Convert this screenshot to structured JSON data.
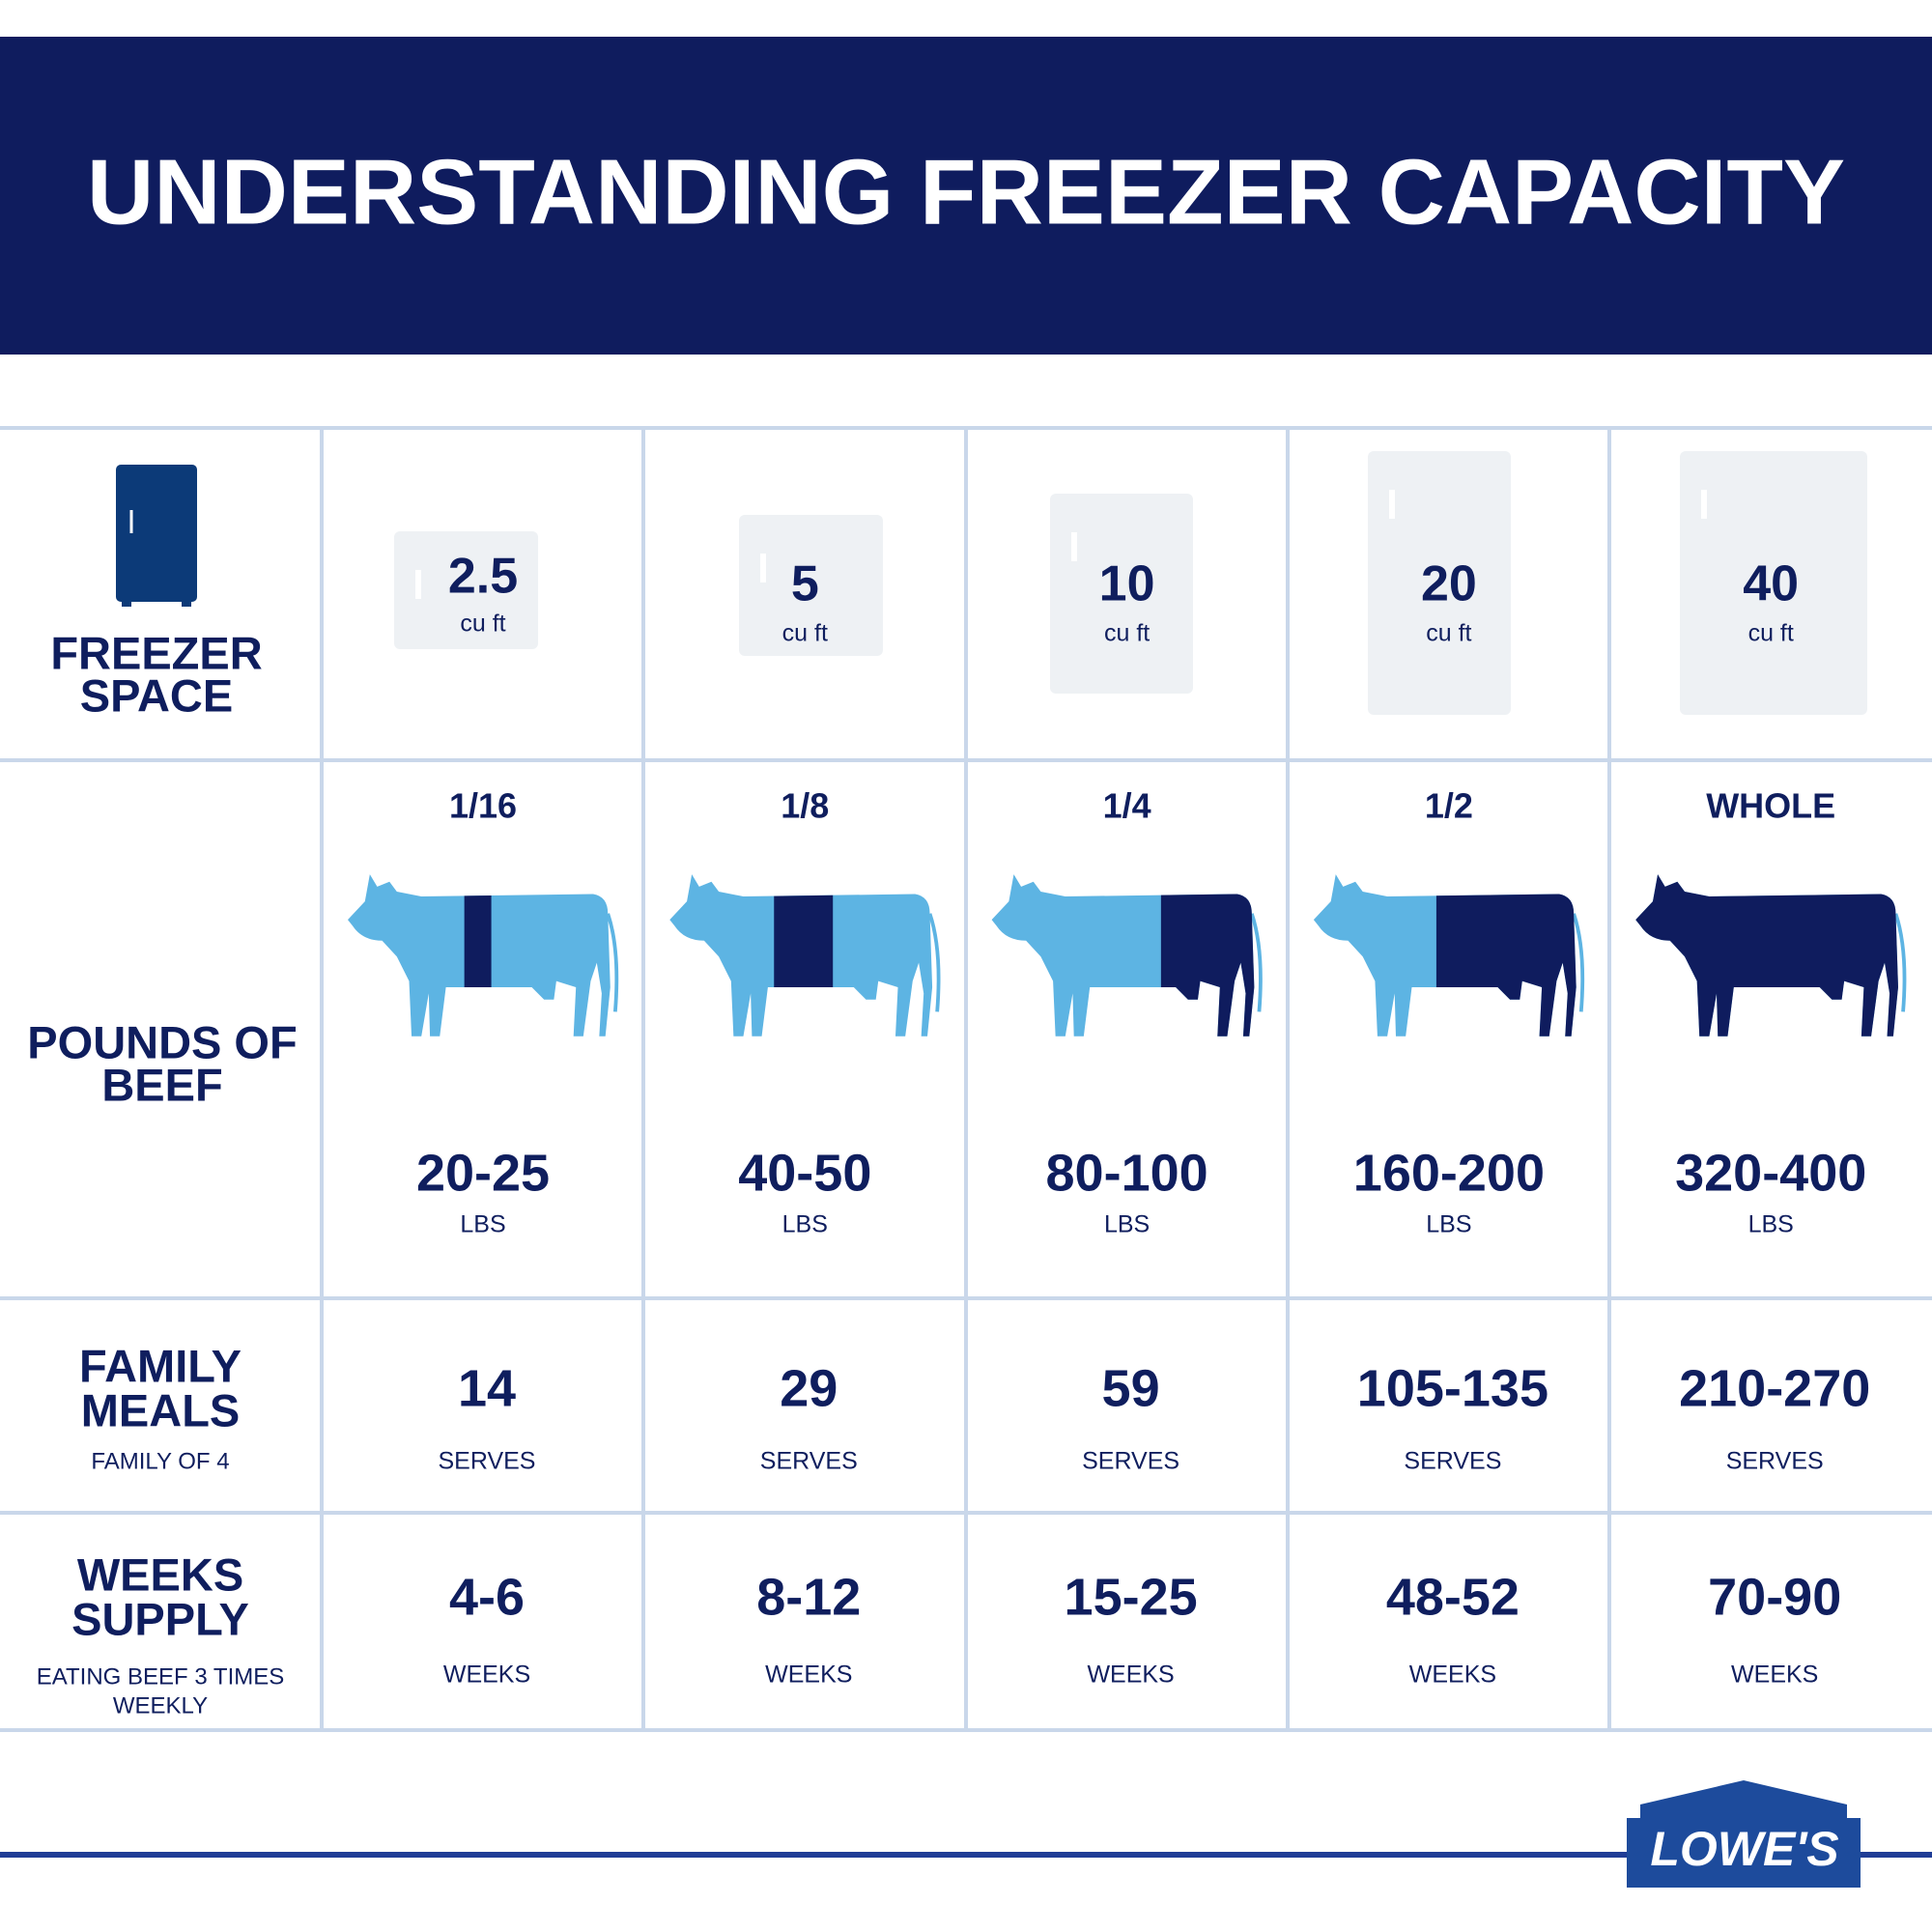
{
  "header": {
    "title": "UNDERSTANDING FREEZER CAPACITY"
  },
  "table": {
    "row_labels": [
      {
        "lines": [
          "FREEZER",
          "SPACE"
        ]
      },
      {
        "lines": [
          "POUNDS OF",
          "BEEF"
        ]
      },
      {
        "lines": [
          "FAMILY",
          "MEALS"
        ],
        "note": [
          "FAMILY OF 4"
        ]
      },
      {
        "lines": [
          "WEEKS",
          "SUPPLY"
        ],
        "note": [
          "EATING BEEF 3 TIMES",
          "WEEKLY"
        ]
      }
    ],
    "columns": [
      {
        "size": "2.5",
        "size_unit": "cu ft",
        "portion": "1/16",
        "pounds": "20-25",
        "pounds_unit": "LBS",
        "meals": "14",
        "meals_unit": "SERVES",
        "weeks": "4-6",
        "weeks_unit": "WEEKS"
      },
      {
        "size": "5",
        "size_unit": "cu ft",
        "portion": "1/8",
        "pounds": "40-50",
        "pounds_unit": "LBS",
        "meals": "29",
        "meals_unit": "SERVES",
        "weeks": "8-12",
        "weeks_unit": "WEEKS"
      },
      {
        "size": "10",
        "size_unit": "cu ft",
        "portion": "1/4",
        "pounds": "80-100",
        "pounds_unit": "LBS",
        "meals": "59",
        "meals_unit": "SERVES",
        "weeks": "15-25",
        "weeks_unit": "WEEKS"
      },
      {
        "size": "20",
        "size_unit": "cu ft",
        "portion": "1/2",
        "pounds": "160-200",
        "pounds_unit": "LBS",
        "meals": "105-135",
        "meals_unit": "SERVES",
        "weeks": "48-52",
        "weeks_unit": "WEEKS"
      },
      {
        "size": "40",
        "size_unit": "cu ft",
        "portion": "WHOLE",
        "pounds": "320-400",
        "pounds_unit": "LBS",
        "meals": "210-270",
        "meals_unit": "SERVES",
        "weeks": "70-90",
        "weeks_unit": "WEEKS"
      }
    ]
  },
  "logo": {
    "text": "LOWE'S"
  }
}
